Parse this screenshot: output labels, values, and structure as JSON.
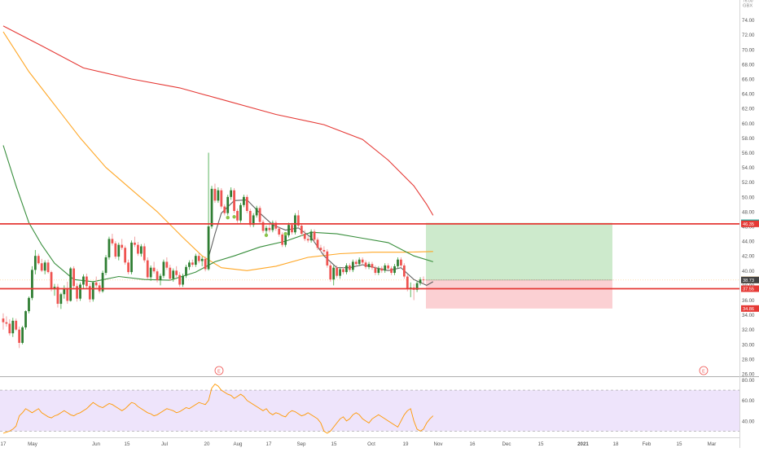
{
  "header": {
    "currency": "GBX",
    "top_label": "76.00"
  },
  "colors": {
    "up": "#26a69a",
    "up_fill": "#2e7d32",
    "down": "#ef5350",
    "ma_red": "#e53935",
    "ma_orange": "#ffa726",
    "ma_green": "#388e3c",
    "ma_gray": "#616161",
    "hline": "#e53935",
    "rsi_line": "#ff9800",
    "rsi_band": "#eee4fb",
    "tp_fill": "#cdeacc",
    "sl_fill": "#fbd0d3"
  },
  "price_axis": {
    "ticks": [
      "74.00",
      "72.00",
      "70.00",
      "68.00",
      "66.00",
      "64.00",
      "62.00",
      "60.00",
      "58.00",
      "56.00",
      "54.00",
      "52.00",
      "50.00",
      "48.00",
      "46.00",
      "44.00",
      "42.00",
      "40.00",
      "38.00",
      "36.00",
      "34.00",
      "32.00",
      "30.00",
      "28.00",
      "26.00"
    ]
  },
  "rsi_axis": {
    "ticks": [
      "80.00",
      "60.00",
      "40.00"
    ]
  },
  "price_labels": [
    {
      "text": "46.49",
      "value": 46.49,
      "color": "#26a69a"
    },
    {
      "text": "46.35",
      "value": 46.35,
      "color": "#e53935"
    },
    {
      "text": "38.74",
      "value": 38.74,
      "color": "#ffa726"
    },
    {
      "text": "38.73",
      "value": 38.73,
      "color": "#424242"
    },
    {
      "text": "37.55",
      "value": 37.55,
      "color": "#e53935"
    },
    {
      "text": "34.86",
      "value": 34.86,
      "color": "#e53935"
    }
  ],
  "time_axis": {
    "ticks": [
      "17",
      "May",
      "Jun",
      "15",
      "Jul",
      "20",
      "Aug",
      "17",
      "Sep",
      "15",
      "Oct",
      "19",
      "Nov",
      "16",
      "Dec",
      "15",
      "2021",
      "18",
      "Feb",
      "15",
      "Mar"
    ]
  },
  "event_markers": [
    "E",
    "E"
  ],
  "chart_data": {
    "type": "candlestick",
    "title": "",
    "y_range": [
      26,
      76.5
    ],
    "horizontal_levels": [
      46.35,
      37.55
    ],
    "position_tool": {
      "entry": 38.73,
      "target": 46.49,
      "stop": 34.86
    },
    "candles_ohlc": [
      [
        33.5,
        34.2,
        32.0,
        33.0
      ],
      [
        33.0,
        33.8,
        32.4,
        32.8
      ],
      [
        32.8,
        33.4,
        31.2,
        31.5
      ],
      [
        31.5,
        33.6,
        31.0,
        33.2
      ],
      [
        33.2,
        33.5,
        31.8,
        32.0
      ],
      [
        32.0,
        32.4,
        29.5,
        30.2
      ],
      [
        30.2,
        32.5,
        30.0,
        32.3
      ],
      [
        32.3,
        34.6,
        32.0,
        34.5
      ],
      [
        34.5,
        36.5,
        34.2,
        36.3
      ],
      [
        36.3,
        40.6,
        36.0,
        40.1
      ],
      [
        40.1,
        42.8,
        39.5,
        42.0
      ],
      [
        42.0,
        42.3,
        40.8,
        41.0
      ],
      [
        41.0,
        41.6,
        39.8,
        40.0
      ],
      [
        40.0,
        41.4,
        39.5,
        41.1
      ],
      [
        41.1,
        41.5,
        39.6,
        39.8
      ],
      [
        39.8,
        40.0,
        37.2,
        37.5
      ],
      [
        37.5,
        38.2,
        36.6,
        37.8
      ],
      [
        37.8,
        38.2,
        35.0,
        35.5
      ],
      [
        35.5,
        37.0,
        34.8,
        36.8
      ],
      [
        36.8,
        38.0,
        36.2,
        37.6
      ],
      [
        37.6,
        38.5,
        35.5,
        35.9
      ],
      [
        35.9,
        40.5,
        35.8,
        40.3
      ],
      [
        40.3,
        40.6,
        37.6,
        37.9
      ],
      [
        37.9,
        38.3,
        35.8,
        36.2
      ],
      [
        36.2,
        38.4,
        35.9,
        38.1
      ],
      [
        38.1,
        39.5,
        37.5,
        39.2
      ],
      [
        39.2,
        39.6,
        37.5,
        37.9
      ],
      [
        37.9,
        38.3,
        35.7,
        36.1
      ],
      [
        36.1,
        38.6,
        35.8,
        38.4
      ],
      [
        38.4,
        39.2,
        37.7,
        38.0
      ],
      [
        38.0,
        38.4,
        36.9,
        37.2
      ],
      [
        37.2,
        40.0,
        37.0,
        39.7
      ],
      [
        39.7,
        42.1,
        39.4,
        41.8
      ],
      [
        41.8,
        44.6,
        41.5,
        44.3
      ],
      [
        44.3,
        45.0,
        43.4,
        43.7
      ],
      [
        43.7,
        44.0,
        41.6,
        41.9
      ],
      [
        41.9,
        43.8,
        41.4,
        43.5
      ],
      [
        43.5,
        44.3,
        42.8,
        43.1
      ],
      [
        43.1,
        43.4,
        40.8,
        41.1
      ],
      [
        41.1,
        41.5,
        39.5,
        39.8
      ],
      [
        39.8,
        44.1,
        39.5,
        43.8
      ],
      [
        43.8,
        44.6,
        43.2,
        43.5
      ],
      [
        43.5,
        43.9,
        42.0,
        42.3
      ],
      [
        42.3,
        43.6,
        41.9,
        43.3
      ],
      [
        43.3,
        43.7,
        41.1,
        41.4
      ],
      [
        41.4,
        41.8,
        38.8,
        39.1
      ],
      [
        39.1,
        40.7,
        38.6,
        40.4
      ],
      [
        40.4,
        41.2,
        39.6,
        39.9
      ],
      [
        39.9,
        40.2,
        38.4,
        38.7
      ],
      [
        38.7,
        39.6,
        38.0,
        39.3
      ],
      [
        39.3,
        41.5,
        39.0,
        41.2
      ],
      [
        41.2,
        41.8,
        40.1,
        40.4
      ],
      [
        40.4,
        40.8,
        38.6,
        38.9
      ],
      [
        38.9,
        40.3,
        38.5,
        40.0
      ],
      [
        40.0,
        40.6,
        39.1,
        39.4
      ],
      [
        39.4,
        39.8,
        37.8,
        38.1
      ],
      [
        38.1,
        39.6,
        37.8,
        39.3
      ],
      [
        39.3,
        40.8,
        39.0,
        40.5
      ],
      [
        40.5,
        41.4,
        40.1,
        41.1
      ],
      [
        41.1,
        41.5,
        40.5,
        40.8
      ],
      [
        40.8,
        42.3,
        40.5,
        42.0
      ],
      [
        42.0,
        42.4,
        41.0,
        41.3
      ],
      [
        41.3,
        41.9,
        40.6,
        41.6
      ],
      [
        41.6,
        41.9,
        39.9,
        40.2
      ],
      [
        40.2,
        56.0,
        40.0,
        46.0
      ],
      [
        46.0,
        51.5,
        45.7,
        51.1
      ],
      [
        51.1,
        51.8,
        49.2,
        49.5
      ],
      [
        49.5,
        51.3,
        49.2,
        50.9
      ],
      [
        50.9,
        51.2,
        48.4,
        48.7
      ],
      [
        48.7,
        49.0,
        47.5,
        47.8
      ],
      [
        47.8,
        50.3,
        47.5,
        50.0
      ],
      [
        50.0,
        51.3,
        49.6,
        50.9
      ],
      [
        50.9,
        51.2,
        47.8,
        48.1
      ],
      [
        48.1,
        48.4,
        46.5,
        46.8
      ],
      [
        46.8,
        49.2,
        46.5,
        48.9
      ],
      [
        48.9,
        50.3,
        48.6,
        50.0
      ],
      [
        50.0,
        50.3,
        47.8,
        48.1
      ],
      [
        48.1,
        48.4,
        45.9,
        46.2
      ],
      [
        46.2,
        47.8,
        45.9,
        47.5
      ],
      [
        47.5,
        48.8,
        47.2,
        48.5
      ],
      [
        48.5,
        48.8,
        46.3,
        46.6
      ],
      [
        46.6,
        46.9,
        45.1,
        45.4
      ],
      [
        45.4,
        46.1,
        44.6,
        45.8
      ],
      [
        45.8,
        46.3,
        45.2,
        45.5
      ],
      [
        45.5,
        46.8,
        45.2,
        46.5
      ],
      [
        46.5,
        46.8,
        45.4,
        45.7
      ],
      [
        45.7,
        46.0,
        44.6,
        44.9
      ],
      [
        44.9,
        45.2,
        43.2,
        43.5
      ],
      [
        43.5,
        45.1,
        43.2,
        44.8
      ],
      [
        44.8,
        46.5,
        44.5,
        46.2
      ],
      [
        46.2,
        46.5,
        44.9,
        45.2
      ],
      [
        45.2,
        47.8,
        44.9,
        47.5
      ],
      [
        47.5,
        48.2,
        45.8,
        46.1
      ],
      [
        46.1,
        46.4,
        44.7,
        45.0
      ],
      [
        45.0,
        45.5,
        44.0,
        44.3
      ],
      [
        44.3,
        44.7,
        43.8,
        44.1
      ],
      [
        44.1,
        45.6,
        43.8,
        45.3
      ],
      [
        45.3,
        45.6,
        43.9,
        44.2
      ],
      [
        44.2,
        44.5,
        42.8,
        43.1
      ],
      [
        43.1,
        43.5,
        42.5,
        42.8
      ],
      [
        42.8,
        43.3,
        42.2,
        42.6
      ],
      [
        42.6,
        42.9,
        40.4,
        40.7
      ],
      [
        40.7,
        41.0,
        38.5,
        38.8
      ],
      [
        38.8,
        40.7,
        38.0,
        40.4
      ],
      [
        40.4,
        40.7,
        39.0,
        39.3
      ],
      [
        39.3,
        40.5,
        38.9,
        40.2
      ],
      [
        40.2,
        40.5,
        39.5,
        39.8
      ],
      [
        39.8,
        41.0,
        39.5,
        40.7
      ],
      [
        40.7,
        41.0,
        39.8,
        40.1
      ],
      [
        40.1,
        41.5,
        39.8,
        41.2
      ],
      [
        41.2,
        41.5,
        40.6,
        40.9
      ],
      [
        40.9,
        41.8,
        40.6,
        41.5
      ],
      [
        41.5,
        41.8,
        40.8,
        41.1
      ],
      [
        41.1,
        41.4,
        40.2,
        40.5
      ],
      [
        40.5,
        41.2,
        40.2,
        40.9
      ],
      [
        40.9,
        41.2,
        40.1,
        40.4
      ],
      [
        40.4,
        40.7,
        39.4,
        39.7
      ],
      [
        39.7,
        40.6,
        39.4,
        40.3
      ],
      [
        40.3,
        40.6,
        39.7,
        40.0
      ],
      [
        40.0,
        41.0,
        39.7,
        40.7
      ],
      [
        40.7,
        41.0,
        40.0,
        40.3
      ],
      [
        40.3,
        40.6,
        39.4,
        39.7
      ],
      [
        39.7,
        40.9,
        39.4,
        40.6
      ],
      [
        40.6,
        41.8,
        40.3,
        41.5
      ],
      [
        41.5,
        41.8,
        40.4,
        40.7
      ],
      [
        40.7,
        41.0,
        38.9,
        39.2
      ],
      [
        39.2,
        39.5,
        37.2,
        37.5
      ],
      [
        37.5,
        38.4,
        36.4,
        37.7
      ],
      [
        37.7,
        38.2,
        36.0,
        37.4
      ],
      [
        37.4,
        38.6,
        37.1,
        38.3
      ],
      [
        38.3,
        39.1,
        38.0,
        38.8
      ],
      [
        38.8,
        39.2,
        38.2,
        38.7
      ]
    ],
    "moving_averages": [
      {
        "color": "#e53935",
        "points": [
          [
            0,
            73.2
          ],
          [
            12,
            70.5
          ],
          [
            25,
            67.5
          ],
          [
            40,
            66.0
          ],
          [
            55,
            64.8
          ],
          [
            70,
            63.0
          ],
          [
            85,
            61.2
          ],
          [
            100,
            59.8
          ],
          [
            112,
            57.8
          ],
          [
            120,
            55.0
          ],
          [
            128,
            51.5
          ],
          [
            132,
            49.0
          ],
          [
            134,
            47.5
          ]
        ]
      },
      {
        "color": "#ffa726",
        "points": [
          [
            0,
            72.4
          ],
          [
            8,
            67.0
          ],
          [
            16,
            62.5
          ],
          [
            24,
            58.0
          ],
          [
            32,
            54.0
          ],
          [
            40,
            51.0
          ],
          [
            48,
            48.0
          ],
          [
            56,
            44.5
          ],
          [
            62,
            42.0
          ],
          [
            68,
            40.4
          ],
          [
            76,
            40.0
          ],
          [
            85,
            40.6
          ],
          [
            95,
            41.8
          ],
          [
            105,
            42.3
          ],
          [
            115,
            42.5
          ],
          [
            125,
            42.5
          ],
          [
            134,
            42.6
          ]
        ]
      },
      {
        "color": "#388e3c",
        "points": [
          [
            0,
            57.0
          ],
          [
            4,
            51.5
          ],
          [
            8,
            46.5
          ],
          [
            12,
            43.5
          ],
          [
            16,
            41.0
          ],
          [
            22,
            38.8
          ],
          [
            28,
            38.5
          ],
          [
            36,
            39.2
          ],
          [
            44,
            38.8
          ],
          [
            52,
            38.7
          ],
          [
            60,
            39.8
          ],
          [
            66,
            41.2
          ],
          [
            72,
            42.0
          ],
          [
            80,
            43.2
          ],
          [
            88,
            44.0
          ],
          [
            96,
            45.2
          ],
          [
            104,
            45.0
          ],
          [
            112,
            44.4
          ],
          [
            120,
            43.8
          ],
          [
            128,
            42.0
          ],
          [
            134,
            41.2
          ]
        ]
      },
      {
        "color": "#616161",
        "points": [
          [
            64,
            41.8
          ],
          [
            66,
            45.0
          ],
          [
            68,
            47.8
          ],
          [
            72,
            49.5
          ],
          [
            76,
            49.6
          ],
          [
            80,
            47.8
          ],
          [
            84,
            46.2
          ],
          [
            88,
            45.5
          ],
          [
            92,
            45.8
          ],
          [
            96,
            44.5
          ],
          [
            100,
            42.0
          ],
          [
            104,
            40.4
          ],
          [
            108,
            40.4
          ],
          [
            112,
            40.8
          ],
          [
            116,
            40.4
          ],
          [
            120,
            40.0
          ],
          [
            124,
            40.4
          ],
          [
            128,
            38.8
          ],
          [
            132,
            38.0
          ],
          [
            134,
            38.5
          ]
        ]
      }
    ],
    "signal_dots": [
      [
        70,
        47.2
      ],
      [
        72,
        47.3
      ],
      [
        82,
        44.8
      ],
      [
        88,
        45.0
      ]
    ],
    "rsi": {
      "y_range": [
        24,
        82
      ],
      "upper": 70,
      "lower": 30,
      "values": [
        28,
        29,
        30,
        32,
        35,
        45,
        48,
        52,
        50,
        48,
        50,
        52,
        48,
        46,
        44,
        43,
        45,
        46,
        48,
        50,
        48,
        46,
        45,
        47,
        48,
        50,
        52,
        55,
        58,
        56,
        54,
        53,
        55,
        57,
        56,
        54,
        52,
        50,
        52,
        55,
        58,
        57,
        54,
        52,
        50,
        48,
        47,
        45,
        46,
        48,
        50,
        52,
        51,
        50,
        48,
        49,
        51,
        53,
        52,
        54,
        56,
        58,
        57,
        56,
        60,
        72,
        76,
        74,
        70,
        68,
        66,
        65,
        62,
        64,
        66,
        64,
        60,
        58,
        56,
        54,
        52,
        50,
        52,
        48,
        46,
        48,
        47,
        45,
        44,
        48,
        50,
        49,
        47,
        45,
        46,
        48,
        46,
        44,
        42,
        38,
        30,
        28,
        30,
        34,
        38,
        42,
        44,
        40,
        42,
        46,
        48,
        46,
        42,
        40,
        38,
        42,
        44,
        46,
        44,
        42,
        40,
        38,
        36,
        34,
        40,
        46,
        50,
        52,
        40,
        32,
        30,
        32,
        38,
        42,
        45
      ]
    }
  }
}
